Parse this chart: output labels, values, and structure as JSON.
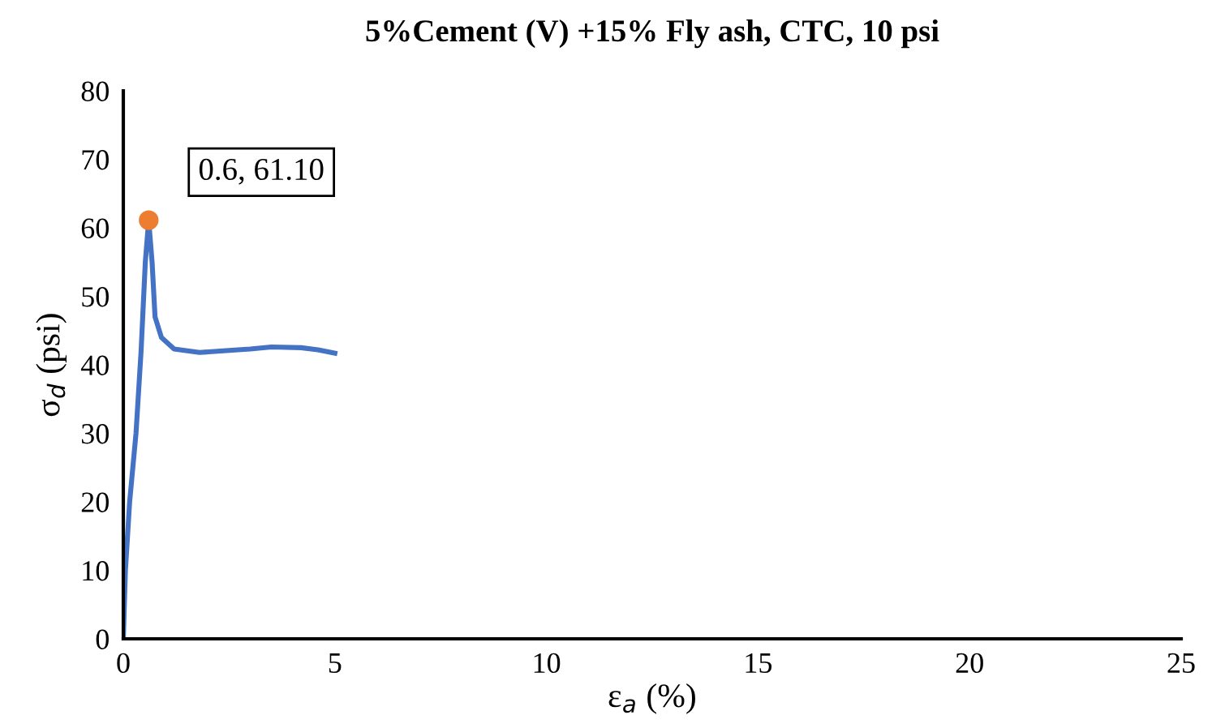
{
  "chart_data": {
    "type": "line",
    "title": "5%Cement (V) +15% Fly ash, CTC, 10 psi",
    "xlabel": "ε$_{a}$ (%)",
    "ylabel": "σ$_{d}$ (psi)",
    "series": [
      {
        "color": "#4472c4",
        "x": [
          0,
          0.05,
          0.15,
          0.3,
          0.42,
          0.52,
          0.6,
          0.68,
          0.75,
          0.9,
          1.2,
          1.8,
          2.5,
          3.0,
          3.5,
          4.2,
          4.6,
          5.0
        ],
        "values": [
          0,
          10,
          20,
          30,
          42,
          55,
          61.1,
          55,
          47,
          44,
          42.3,
          41.8,
          42.1,
          42.3,
          42.6,
          42.5,
          42.2,
          41.7
        ]
      },
      {
        "type": "scatter",
        "color": "#ed7d31",
        "x": [
          0.6
        ],
        "values": [
          61.1
        ]
      }
    ],
    "annotations": [
      {
        "text": "0.6, 61.10",
        "x": 0.6,
        "y": 61.1
      }
    ],
    "xlim": [
      0,
      25
    ],
    "xticks": [
      0,
      5,
      10,
      15,
      20,
      25
    ],
    "ylim": [
      0,
      80
    ],
    "yticks": [
      0,
      10,
      20,
      30,
      40,
      50,
      60,
      70,
      80
    ],
    "grid": false,
    "legend": false
  }
}
